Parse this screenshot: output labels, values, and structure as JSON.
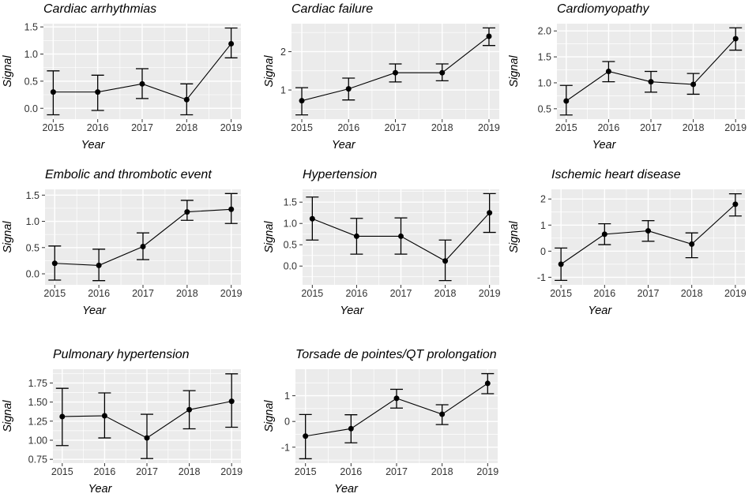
{
  "style": {
    "page_background": "#ffffff",
    "panel_background": "#ebebeb",
    "grid_color": "#ffffff",
    "data_color": "#000000",
    "title_color": "#000000",
    "tick_label_color": "#333333"
  },
  "chart_data": [
    {
      "type": "line",
      "title": "Cardiac arrhythmias",
      "xlabel": "Year",
      "ylabel": "Signal",
      "x": [
        2015,
        2016,
        2017,
        2018,
        2019
      ],
      "y": [
        0.3,
        0.3,
        0.45,
        0.16,
        1.19
      ],
      "y_lower": [
        -0.12,
        -0.04,
        0.18,
        -0.12,
        0.93
      ],
      "y_upper": [
        0.69,
        0.61,
        0.73,
        0.45,
        1.48
      ],
      "error_bars": true,
      "y_ticks": [
        0.0,
        0.5,
        1.0,
        1.5
      ],
      "y_tick_labels": [
        "0.0",
        "0.5",
        "1.0",
        "1.5"
      ],
      "ylim": [
        -0.2,
        1.56
      ],
      "xlim": [
        2014.78,
        2019.22
      ],
      "grid": "major+minor",
      "legend": "none"
    },
    {
      "type": "line",
      "title": "Cardiac failure",
      "xlabel": "Year",
      "ylabel": "Signal",
      "x": [
        2015,
        2016,
        2017,
        2018,
        2019
      ],
      "y": [
        0.72,
        1.03,
        1.45,
        1.45,
        2.4
      ],
      "y_lower": [
        0.35,
        0.74,
        1.21,
        1.24,
        2.16
      ],
      "y_upper": [
        1.06,
        1.31,
        1.68,
        1.68,
        2.62
      ],
      "error_bars": true,
      "y_ticks": [
        1,
        2
      ],
      "y_tick_labels": [
        "1",
        "2"
      ],
      "ylim": [
        0.24,
        2.73
      ],
      "xlim": [
        2014.78,
        2019.22
      ],
      "grid": "major+minor",
      "legend": "none"
    },
    {
      "type": "line",
      "title": "Cardiomyopathy",
      "xlabel": "Year",
      "ylabel": "Signal",
      "x": [
        2015,
        2016,
        2017,
        2018,
        2019
      ],
      "y": [
        0.65,
        1.22,
        1.02,
        0.97,
        1.85
      ],
      "y_lower": [
        0.38,
        1.02,
        0.82,
        0.78,
        1.63
      ],
      "y_upper": [
        0.95,
        1.41,
        1.22,
        1.18,
        2.06
      ],
      "error_bars": true,
      "y_ticks": [
        0.5,
        1.0,
        1.5,
        2.0
      ],
      "y_tick_labels": [
        "0.5",
        "1.0",
        "1.5",
        "2.0"
      ],
      "ylim": [
        0.3,
        2.14
      ],
      "xlim": [
        2014.78,
        2019.22
      ],
      "grid": "major+minor",
      "legend": "none"
    },
    {
      "type": "line",
      "title": "Embolic and thrombotic event",
      "xlabel": "Year",
      "ylabel": "Signal",
      "x": [
        2015,
        2016,
        2017,
        2018,
        2019
      ],
      "y": [
        0.2,
        0.16,
        0.52,
        1.18,
        1.23
      ],
      "y_lower": [
        -0.12,
        -0.13,
        0.27,
        1.02,
        0.96
      ],
      "y_upper": [
        0.53,
        0.47,
        0.78,
        1.4,
        1.53
      ],
      "error_bars": true,
      "y_ticks": [
        0.0,
        0.5,
        1.0,
        1.5
      ],
      "y_tick_labels": [
        "0.0",
        "0.5",
        "1.0",
        "1.5"
      ],
      "ylim": [
        -0.21,
        1.61
      ],
      "xlim": [
        2014.78,
        2019.22
      ],
      "grid": "major+minor",
      "legend": "none"
    },
    {
      "type": "line",
      "title": "Hypertension",
      "xlabel": "Year",
      "ylabel": "Signal",
      "x": [
        2015,
        2016,
        2017,
        2018,
        2019
      ],
      "y": [
        1.11,
        0.7,
        0.7,
        0.12,
        1.25
      ],
      "y_lower": [
        0.61,
        0.28,
        0.28,
        -0.34,
        0.79
      ],
      "y_upper": [
        1.62,
        1.12,
        1.13,
        0.61,
        1.7
      ],
      "error_bars": true,
      "y_ticks": [
        0.0,
        0.5,
        1.0,
        1.5
      ],
      "y_tick_labels": [
        "0.0",
        "0.5",
        "1.0",
        "1.5"
      ],
      "ylim": [
        -0.44,
        1.8
      ],
      "xlim": [
        2014.78,
        2019.22
      ],
      "grid": "major+minor",
      "legend": "none"
    },
    {
      "type": "line",
      "title": "Ischemic heart disease",
      "xlabel": "Year",
      "ylabel": "Signal",
      "x": [
        2015,
        2016,
        2017,
        2018,
        2019
      ],
      "y": [
        -0.5,
        0.65,
        0.78,
        0.27,
        1.8
      ],
      "y_lower": [
        -1.12,
        0.25,
        0.38,
        -0.25,
        1.35
      ],
      "y_upper": [
        0.12,
        1.05,
        1.17,
        0.7,
        2.2
      ],
      "error_bars": true,
      "y_ticks": [
        -1,
        0,
        1,
        2
      ],
      "y_tick_labels": [
        "-1",
        "0",
        "1",
        "2"
      ],
      "ylim": [
        -1.29,
        2.37
      ],
      "xlim": [
        2014.78,
        2019.22
      ],
      "grid": "major+minor",
      "legend": "none"
    },
    {
      "type": "line",
      "title": "Pulmonary hypertension",
      "xlabel": "Year",
      "ylabel": "Signal",
      "x": [
        2015,
        2016,
        2017,
        2018,
        2019
      ],
      "y": [
        1.31,
        1.32,
        1.03,
        1.4,
        1.51
      ],
      "y_lower": [
        0.93,
        1.03,
        0.76,
        1.15,
        1.17
      ],
      "y_upper": [
        1.68,
        1.62,
        1.34,
        1.65,
        1.87
      ],
      "error_bars": true,
      "y_ticks": [
        0.75,
        1.0,
        1.25,
        1.5,
        1.75
      ],
      "y_tick_labels": [
        "0.75",
        "1.00",
        "1.25",
        "1.50",
        "1.75"
      ],
      "ylim": [
        0.7,
        1.93
      ],
      "xlim": [
        2014.78,
        2019.22
      ],
      "grid": "major+minor",
      "legend": "none"
    },
    {
      "type": "line",
      "title": "Torsade de pointes/QT prolongation",
      "xlabel": "Year",
      "ylabel": "Signal",
      "x": [
        2015,
        2016,
        2017,
        2018,
        2019
      ],
      "y": [
        -0.57,
        -0.28,
        0.9,
        0.28,
        1.48
      ],
      "y_lower": [
        -1.45,
        -0.83,
        0.52,
        -0.12,
        1.08
      ],
      "y_upper": [
        0.27,
        0.26,
        1.25,
        0.65,
        1.86
      ],
      "error_bars": true,
      "y_ticks": [
        -1,
        0,
        1
      ],
      "y_tick_labels": [
        "-1",
        "0",
        "1"
      ],
      "ylim": [
        -1.62,
        2.03
      ],
      "xlim": [
        2014.78,
        2019.22
      ],
      "grid": "major+minor",
      "legend": "none"
    }
  ]
}
